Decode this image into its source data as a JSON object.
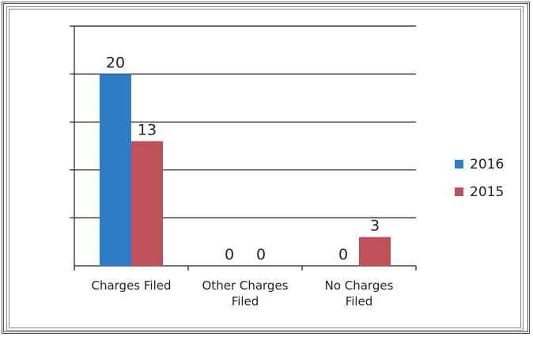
{
  "chart_data": {
    "type": "bar",
    "categories": [
      "Charges Filed",
      "Other Charges Filed",
      "No Charges Filed"
    ],
    "category_lines": [
      [
        "Charges Filed"
      ],
      [
        "Other Charges",
        "Filed"
      ],
      [
        "No Charges",
        "Filed"
      ]
    ],
    "series": [
      {
        "name": "2016",
        "values": [
          20,
          0,
          0
        ],
        "color": "#2f7dc9"
      },
      {
        "name": "2015",
        "values": [
          13,
          0,
          3
        ],
        "color": "#c0505a"
      }
    ],
    "data_labels": [
      [
        "20",
        "0",
        "0"
      ],
      [
        "13",
        "0",
        "3"
      ]
    ],
    "ylim": [
      0,
      25
    ],
    "grid": true,
    "legend": "right"
  }
}
